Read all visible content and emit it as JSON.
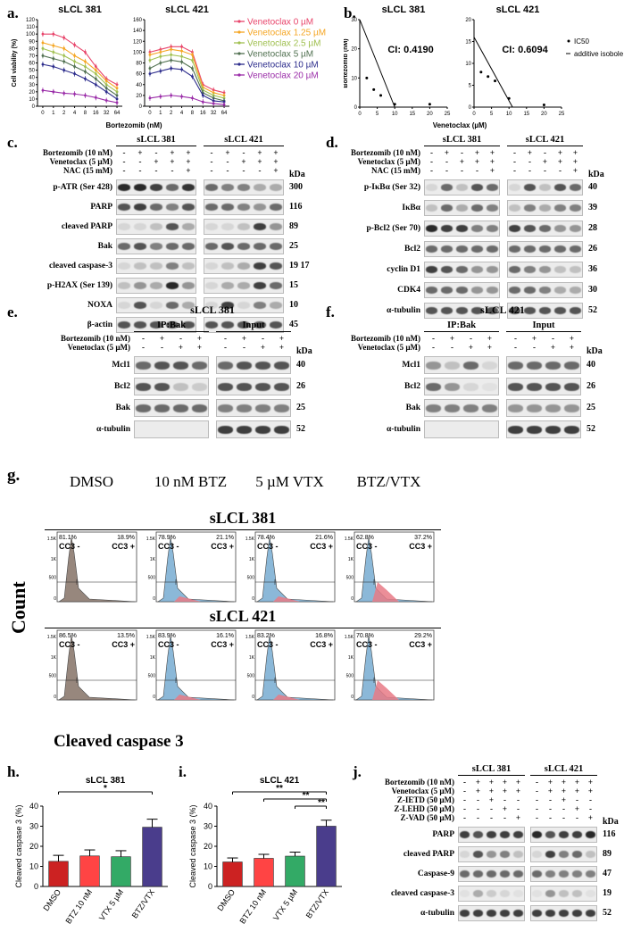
{
  "panels": {
    "a": {
      "label": "a."
    },
    "b": {
      "label": "b."
    },
    "c": {
      "label": "c."
    },
    "d": {
      "label": "d."
    },
    "e": {
      "label": "e."
    },
    "f": {
      "label": "f."
    },
    "g": {
      "label": "g."
    },
    "h": {
      "label": "h."
    },
    "i": {
      "label": "i."
    },
    "j": {
      "label": "j."
    }
  },
  "cells": {
    "a": "sLCL 381",
    "b": "sLCL 421"
  },
  "chart_data": [
    {
      "id": "a-381",
      "type": "line",
      "title": "sLCL 381",
      "xlabel": "Bortezomib (nM)",
      "ylabel": "Cell viability (%)",
      "categories": [
        "0",
        "1",
        "2",
        "4",
        "8",
        "16",
        "32",
        "64"
      ],
      "ylim": [
        0,
        120
      ],
      "yticks": [
        0,
        10,
        20,
        30,
        40,
        50,
        60,
        70,
        80,
        90,
        100,
        110,
        120
      ],
      "series": [
        {
          "name": "Venetoclax 0 µM",
          "color": "#e8456b",
          "values": [
            100,
            100,
            95,
            85,
            75,
            55,
            38,
            30
          ]
        },
        {
          "name": "Venetoclax 1.25 µM",
          "color": "#f5a623",
          "values": [
            88,
            84,
            80,
            70,
            62,
            50,
            35,
            25
          ]
        },
        {
          "name": "Venetoclax 2.5 µM",
          "color": "#a0c050",
          "values": [
            80,
            75,
            70,
            62,
            55,
            45,
            30,
            20
          ]
        },
        {
          "name": "Venetoclax 5 µM",
          "color": "#507050",
          "values": [
            70,
            66,
            62,
            55,
            48,
            38,
            25,
            15
          ]
        },
        {
          "name": "Venetoclax 10 µM",
          "color": "#2c2c8c",
          "values": [
            58,
            55,
            50,
            45,
            38,
            30,
            20,
            10
          ]
        },
        {
          "name": "Venetoclax 20 µM",
          "color": "#9a2ca8",
          "values": [
            22,
            20,
            18,
            17,
            15,
            12,
            8,
            5
          ]
        }
      ]
    },
    {
      "id": "a-421",
      "type": "line",
      "title": "sLCL 421",
      "xlabel": "Bortezomib (nM)",
      "ylabel": "",
      "categories": [
        "0",
        "1",
        "2",
        "4",
        "8",
        "16",
        "32",
        "64"
      ],
      "ylim": [
        0,
        160
      ],
      "yticks": [
        0,
        20,
        40,
        60,
        80,
        100,
        120,
        140,
        160
      ],
      "series": [
        {
          "name": "Venetoclax 0 µM",
          "color": "#e8456b",
          "values": [
            100,
            105,
            110,
            110,
            100,
            40,
            30,
            25
          ]
        },
        {
          "name": "Venetoclax 1.25 µM",
          "color": "#f5a623",
          "values": [
            95,
            100,
            105,
            102,
            95,
            35,
            25,
            20
          ]
        },
        {
          "name": "Venetoclax 2.5 µM",
          "color": "#a0c050",
          "values": [
            85,
            92,
            95,
            92,
            85,
            30,
            20,
            15
          ]
        },
        {
          "name": "Venetoclax 5 µM",
          "color": "#507050",
          "values": [
            70,
            80,
            85,
            82,
            70,
            25,
            15,
            10
          ]
        },
        {
          "name": "Venetoclax 10 µM",
          "color": "#2c2c8c",
          "values": [
            60,
            65,
            70,
            68,
            55,
            20,
            10,
            8
          ]
        },
        {
          "name": "Venetoclax 20 µM",
          "color": "#9a2ca8",
          "values": [
            15,
            18,
            20,
            18,
            15,
            8,
            5,
            3
          ]
        }
      ]
    },
    {
      "id": "b-381",
      "type": "scatter",
      "title": "sLCL 381",
      "annotation": "CI: 0.4190",
      "xlabel": "Venetoclax (µM)",
      "ylabel": "Bortezomib (nM)",
      "xlim": [
        0,
        25
      ],
      "ylim": [
        0,
        30
      ],
      "xticks": [
        0,
        5,
        10,
        15,
        20,
        25
      ],
      "yticks": [
        0,
        10,
        20,
        30
      ],
      "points": [
        [
          2,
          10
        ],
        [
          4,
          6
        ],
        [
          6,
          4
        ],
        [
          10,
          1
        ],
        [
          20,
          1
        ]
      ],
      "isobole": [
        [
          0,
          30
        ],
        [
          10,
          0
        ]
      ],
      "legend": [
        "IC50",
        "additive isobole"
      ]
    },
    {
      "id": "b-421",
      "type": "scatter",
      "title": "sLCL 421",
      "annotation": "CI: 0.6094",
      "xlabel": "",
      "ylabel": "",
      "xlim": [
        0,
        25
      ],
      "ylim": [
        0,
        20
      ],
      "xticks": [
        0,
        5,
        10,
        15,
        20,
        25
      ],
      "yticks": [
        0,
        5,
        10,
        15,
        20
      ],
      "points": [
        [
          2,
          8
        ],
        [
          4,
          7
        ],
        [
          6,
          6
        ],
        [
          10,
          2
        ],
        [
          20,
          0.5
        ]
      ],
      "isobole": [
        [
          0,
          16
        ],
        [
          11,
          0
        ]
      ]
    },
    {
      "id": "h",
      "type": "bar",
      "title": "sLCL 381",
      "ylabel": "Cleaved caspase 3 (%)",
      "categories": [
        "DMSO",
        "BTZ 10 nM",
        "VTX 5 µM",
        "BTZ/VTX"
      ],
      "values": [
        12.5,
        15.2,
        14.8,
        29.5
      ],
      "errors": [
        3,
        3,
        3,
        4
      ],
      "colors": [
        "#cc2222",
        "#ff4444",
        "#33aa66",
        "#4a3d8c"
      ],
      "ylim": [
        0,
        40
      ],
      "yticks": [
        0,
        10,
        20,
        30,
        40
      ],
      "significance": [
        {
          "from": 0,
          "to": 3,
          "label": "*"
        }
      ]
    },
    {
      "id": "i",
      "type": "bar",
      "title": "sLCL 421",
      "ylabel": "Cleaved caspase 3 (%)",
      "categories": [
        "DMSO",
        "BTZ 10 nM",
        "VTX 5 µM",
        "BTZ/VTX"
      ],
      "values": [
        12.2,
        14.0,
        15.1,
        30.0
      ],
      "errors": [
        2,
        2,
        2,
        3
      ],
      "colors": [
        "#cc2222",
        "#ff4444",
        "#33aa66",
        "#4a3d8c"
      ],
      "ylim": [
        0,
        40
      ],
      "yticks": [
        0,
        10,
        20,
        30,
        40
      ],
      "significance": [
        {
          "from": 0,
          "to": 3,
          "label": "**"
        },
        {
          "from": 1,
          "to": 3,
          "label": "**"
        },
        {
          "from": 2,
          "to": 3,
          "label": "**"
        }
      ]
    }
  ],
  "blot_c": {
    "headers": [
      "sLCL 381",
      "sLCL 421"
    ],
    "treatments": [
      {
        "label": "Bortezomib (10 nM)",
        "signs": [
          "-",
          "+",
          "-",
          "+",
          "+",
          "-",
          "+",
          "-",
          "+",
          "+"
        ]
      },
      {
        "label": "Venetoclax (5 µM)",
        "signs": [
          "-",
          "-",
          "+",
          "+",
          "+",
          "-",
          "-",
          "+",
          "+",
          "+"
        ]
      },
      {
        "label": "NAC (15 mM)",
        "signs": [
          "-",
          "-",
          "-",
          "-",
          "+",
          "-",
          "-",
          "-",
          "-",
          "+"
        ]
      }
    ],
    "kda_label": "kDa",
    "rows": [
      {
        "label": "p-ATR (Ser 428)",
        "kda": "300",
        "intens": [
          0.9,
          0.9,
          0.8,
          0.6,
          0.85,
          0.6,
          0.5,
          0.5,
          0.3,
          0.3
        ]
      },
      {
        "label": "PARP",
        "kda": "116",
        "intens": [
          0.7,
          0.8,
          0.6,
          0.5,
          0.7,
          0.6,
          0.6,
          0.5,
          0.4,
          0.6
        ]
      },
      {
        "label": "cleaved PARP",
        "kda": "89",
        "intens": [
          0.1,
          0.1,
          0.2,
          0.7,
          0.3,
          0.1,
          0.1,
          0.2,
          0.8,
          0.4
        ]
      },
      {
        "label": "Bak",
        "kda": "25",
        "intens": [
          0.6,
          0.7,
          0.5,
          0.6,
          0.6,
          0.6,
          0.7,
          0.6,
          0.6,
          0.6
        ]
      },
      {
        "label": "cleaved caspase-3",
        "kda": "19 17",
        "intens": [
          0.1,
          0.2,
          0.2,
          0.5,
          0.2,
          0.1,
          0.2,
          0.3,
          0.8,
          0.7
        ]
      },
      {
        "label": "p-H2AX (Ser 139)",
        "kda": "15",
        "intens": [
          0.2,
          0.4,
          0.3,
          0.9,
          0.4,
          0.1,
          0.3,
          0.3,
          0.8,
          0.6
        ]
      },
      {
        "label": "NOXA",
        "kda": "10",
        "intens": [
          0.1,
          0.7,
          0.1,
          0.6,
          0.3,
          0.1,
          0.8,
          0.1,
          0.5,
          0.3
        ]
      },
      {
        "label": "β-actin",
        "kda": "45",
        "intens": [
          0.7,
          0.7,
          0.7,
          0.7,
          0.7,
          0.7,
          0.7,
          0.7,
          0.7,
          0.7
        ]
      }
    ]
  },
  "blot_d": {
    "headers": [
      "sLCL 381",
      "sLCL 421"
    ],
    "treatments": [
      {
        "label": "Bortezomib (10 nM)",
        "signs": [
          "-",
          "+",
          "-",
          "+",
          "+",
          "-",
          "+",
          "-",
          "+",
          "+"
        ]
      },
      {
        "label": "Venetoclax (5 µM)",
        "signs": [
          "-",
          "-",
          "+",
          "+",
          "+",
          "-",
          "-",
          "+",
          "+",
          "+"
        ]
      },
      {
        "label": "NAC (15 mM)",
        "signs": [
          "-",
          "-",
          "-",
          "-",
          "+",
          "-",
          "-",
          "-",
          "-",
          "+"
        ]
      }
    ],
    "kda_label": "kDa",
    "rows": [
      {
        "label": "p-IκBα (Ser 32)",
        "kda": "40",
        "intens": [
          0.1,
          0.6,
          0.2,
          0.7,
          0.6,
          0.1,
          0.7,
          0.2,
          0.7,
          0.6
        ]
      },
      {
        "label": "IκBα",
        "kda": "39",
        "intens": [
          0.2,
          0.6,
          0.3,
          0.6,
          0.5,
          0.2,
          0.5,
          0.3,
          0.5,
          0.5
        ]
      },
      {
        "label": "p-Bcl2 (Ser 70)",
        "kda": "28",
        "intens": [
          0.9,
          0.8,
          0.8,
          0.5,
          0.5,
          0.8,
          0.7,
          0.6,
          0.4,
          0.4
        ]
      },
      {
        "label": "Bcl2",
        "kda": "26",
        "intens": [
          0.6,
          0.6,
          0.6,
          0.6,
          0.6,
          0.6,
          0.6,
          0.6,
          0.6,
          0.6
        ]
      },
      {
        "label": "cyclin D1",
        "kda": "36",
        "intens": [
          0.8,
          0.7,
          0.6,
          0.4,
          0.4,
          0.6,
          0.5,
          0.4,
          0.2,
          0.2
        ]
      },
      {
        "label": "CDK4",
        "kda": "30",
        "intens": [
          0.6,
          0.6,
          0.6,
          0.4,
          0.4,
          0.6,
          0.6,
          0.5,
          0.3,
          0.3
        ]
      },
      {
        "label": "α-tubulin",
        "kda": "52",
        "intens": [
          0.7,
          0.7,
          0.7,
          0.7,
          0.7,
          0.7,
          0.7,
          0.7,
          0.7,
          0.7
        ]
      }
    ]
  },
  "blot_e": {
    "title": "sLCL 381",
    "groups": [
      "IP:Bak",
      "Input"
    ],
    "treatments": [
      {
        "label": "Bortezomib (10 nM)",
        "signs": [
          "-",
          "+",
          "-",
          "+",
          "-",
          "+",
          "-",
          "+"
        ]
      },
      {
        "label": "Venetoclax (5 µM)",
        "signs": [
          "-",
          "-",
          "+",
          "+",
          "-",
          "-",
          "+",
          "+"
        ]
      }
    ],
    "kda_label": "kDa",
    "rows": [
      {
        "label": "Mcl1",
        "kda": "40",
        "intens": [
          0.6,
          0.7,
          0.7,
          0.6,
          0.6,
          0.7,
          0.7,
          0.7
        ]
      },
      {
        "label": "Bcl2",
        "kda": "26",
        "intens": [
          0.7,
          0.7,
          0.2,
          0.15,
          0.7,
          0.7,
          0.7,
          0.7
        ]
      },
      {
        "label": "Bak",
        "kda": "25",
        "intens": [
          0.6,
          0.6,
          0.6,
          0.6,
          0.5,
          0.5,
          0.5,
          0.5
        ]
      },
      {
        "label": "α-tubulin",
        "kda": "52",
        "intens": [
          0,
          0,
          0,
          0,
          0.8,
          0.8,
          0.8,
          0.8
        ]
      }
    ]
  },
  "blot_f": {
    "title": "sLCL 421",
    "groups": [
      "IP:Bak",
      "Input"
    ],
    "treatments": [
      {
        "label": "Bortezomib (10 nM)",
        "signs": [
          "-",
          "+",
          "-",
          "+",
          "-",
          "+",
          "-",
          "+"
        ]
      },
      {
        "label": "Venetoclax (5 µM)",
        "signs": [
          "-",
          "-",
          "+",
          "+",
          "-",
          "-",
          "+",
          "+"
        ]
      }
    ],
    "kda_label": "kDa",
    "rows": [
      {
        "label": "Mcl1",
        "kda": "40",
        "intens": [
          0.4,
          0.2,
          0.6,
          0.1,
          0.6,
          0.6,
          0.6,
          0.6
        ]
      },
      {
        "label": "Bcl2",
        "kda": "26",
        "intens": [
          0.6,
          0.4,
          0.1,
          0.05,
          0.7,
          0.7,
          0.7,
          0.7
        ]
      },
      {
        "label": "Bak",
        "kda": "25",
        "intens": [
          0.5,
          0.5,
          0.5,
          0.5,
          0.4,
          0.4,
          0.4,
          0.4
        ]
      },
      {
        "label": "α-tubulin",
        "kda": "52",
        "intens": [
          0,
          0,
          0,
          0,
          0.8,
          0.8,
          0.8,
          0.8
        ]
      }
    ]
  },
  "flow_g": {
    "conditions": [
      "DMSO",
      "10 nM BTZ",
      "5 µM VTX",
      "BTZ/VTX"
    ],
    "rows": [
      {
        "cell": "sLCL 381",
        "neg": [
          "81.1%",
          "78.9%",
          "78.4%",
          "62.8%"
        ],
        "pos": [
          "18.9%",
          "21.1%",
          "21.6%",
          "37.2%"
        ]
      },
      {
        "cell": "sLCL 421",
        "neg": [
          "86.5%",
          "83.9%",
          "83.2%",
          "70.8%"
        ],
        "pos": [
          "13.5%",
          "16.1%",
          "16.8%",
          "29.2%"
        ]
      }
    ],
    "neg_label": "CC3 -",
    "pos_label": "CC3 +",
    "xlabel": "Cleaved caspase 3",
    "ylabel": "Count",
    "yticks": [
      "1.5K",
      "1K",
      "500",
      "0"
    ]
  },
  "blot_j": {
    "headers": [
      "sLCL 381",
      "sLCL 421"
    ],
    "treatments": [
      {
        "label": "Bortezomib (10 nM)",
        "signs": [
          "-",
          "+",
          "+",
          "+",
          "+",
          "-",
          "+",
          "+",
          "+",
          "+"
        ]
      },
      {
        "label": "Venetoclax (5 µM)",
        "signs": [
          "-",
          "+",
          "+",
          "+",
          "+",
          "-",
          "+",
          "+",
          "+",
          "+"
        ]
      },
      {
        "label": "Z-IETD (50 µM)",
        "signs": [
          "-",
          "-",
          "+",
          "-",
          "-",
          "-",
          "-",
          "+",
          "-",
          "-"
        ]
      },
      {
        "label": "Z-LEHD (50 µM)",
        "signs": [
          "-",
          "-",
          "-",
          "+",
          "-",
          "-",
          "-",
          "-",
          "+",
          "-"
        ]
      },
      {
        "label": "Z-VAD (50 µM)",
        "signs": [
          "-",
          "-",
          "-",
          "-",
          "+",
          "-",
          "-",
          "-",
          "-",
          "+"
        ]
      }
    ],
    "kda_label": "kDa",
    "rows": [
      {
        "label": "PARP",
        "kda": "116",
        "intens": [
          0.8,
          0.7,
          0.8,
          0.8,
          0.8,
          0.9,
          0.7,
          0.8,
          0.8,
          0.9
        ]
      },
      {
        "label": "cleaved PARP",
        "kda": "89",
        "intens": [
          0.1,
          0.7,
          0.4,
          0.5,
          0.2,
          0.1,
          0.8,
          0.5,
          0.6,
          0.2
        ]
      },
      {
        "label": "Caspase-9",
        "kda": "47",
        "intens": [
          0.6,
          0.6,
          0.6,
          0.6,
          0.6,
          0.6,
          0.5,
          0.5,
          0.5,
          0.5
        ]
      },
      {
        "label": "cleaved caspase-3",
        "kda": "19",
        "intens": [
          0.05,
          0.3,
          0.15,
          0.1,
          0.05,
          0.05,
          0.4,
          0.2,
          0.2,
          0.05
        ]
      },
      {
        "label": "α-tubulin",
        "kda": "52",
        "intens": [
          0.8,
          0.8,
          0.8,
          0.8,
          0.8,
          0.8,
          0.8,
          0.8,
          0.8,
          0.8
        ]
      }
    ]
  }
}
